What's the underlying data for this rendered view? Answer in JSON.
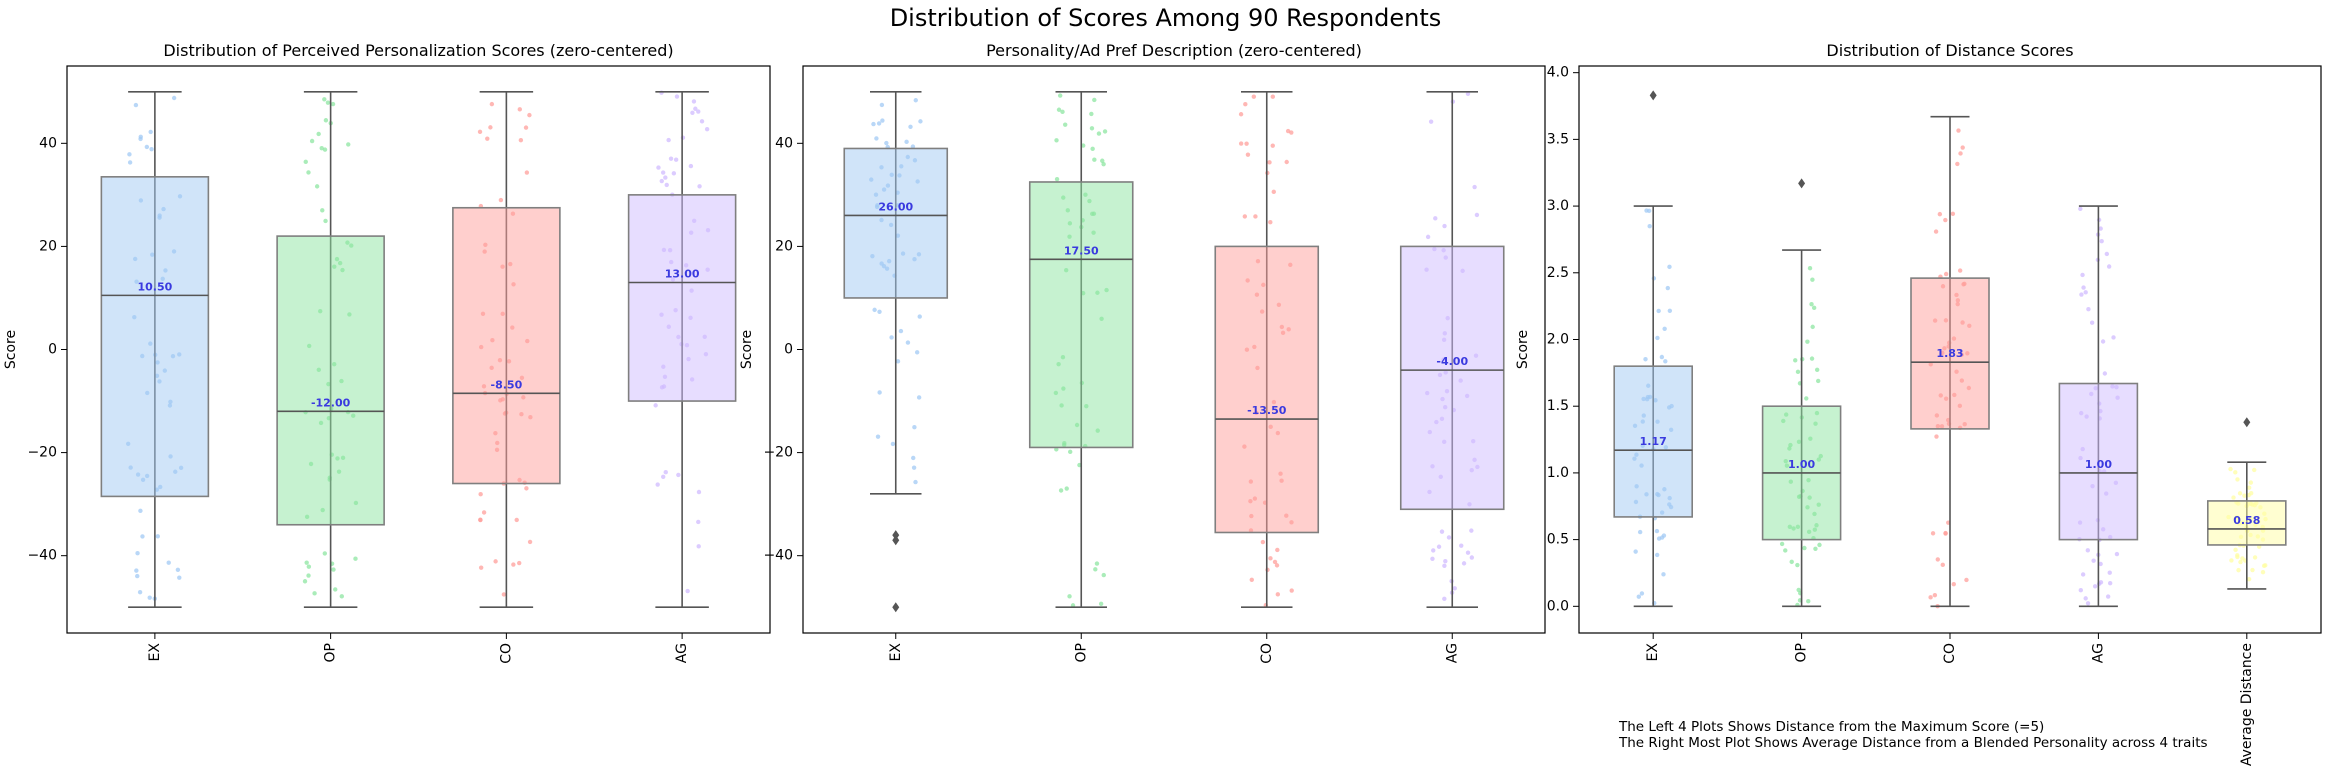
{
  "suptitle": "Distribution of Scores Among 90 Respondents",
  "footnote": {
    "line1": "The Left 4 Plots Shows Distance from the Maximum Score (=5)",
    "line2": "The Right Most Plot Shows Average Distance from a Blended Personality across 4 traits"
  },
  "colors": {
    "EX": "#a1c9f4",
    "OP": "#8de5a1",
    "CO": "#ff9f9b",
    "AG": "#d0bbff",
    "Average Distance": "#fffea3",
    "whisker": "#555555",
    "median_label": "#3a3adf"
  },
  "chart_data": [
    {
      "type": "box",
      "title": "Distribution of Perceived Personalization Scores (zero-centered)",
      "xlabel": "",
      "ylabel": "Score",
      "ylim": [
        -55,
        55
      ],
      "yticks": [
        -40,
        -20,
        0,
        20,
        40
      ],
      "ytick_labels": [
        "−40",
        "−20",
        "0",
        "20",
        "40"
      ],
      "categories": [
        "EX",
        "OP",
        "CO",
        "AG"
      ],
      "boxes": [
        {
          "category": "EX",
          "whisker_low": -50,
          "q1": -28.5,
          "median": 10.5,
          "q3": 33.5,
          "whisker_high": 50,
          "median_label": "10.50",
          "outliers": []
        },
        {
          "category": "OP",
          "whisker_low": -50,
          "q1": -34,
          "median": -12,
          "q3": 22,
          "whisker_high": 50,
          "median_label": "-12.00",
          "outliers": []
        },
        {
          "category": "CO",
          "whisker_low": -50,
          "q1": -26,
          "median": -8.5,
          "q3": 27.5,
          "whisker_high": 50,
          "median_label": "-8.50",
          "outliers": []
        },
        {
          "category": "AG",
          "whisker_low": -50,
          "q1": -10,
          "median": 13,
          "q3": 30,
          "whisker_high": 50,
          "median_label": "13.00",
          "outliers": []
        }
      ]
    },
    {
      "type": "box",
      "title": "Personality/Ad Pref Description (zero-centered)",
      "xlabel": "",
      "ylabel": "Score",
      "ylim": [
        -55,
        55
      ],
      "yticks": [
        -40,
        -20,
        0,
        20,
        40
      ],
      "ytick_labels": [
        "−40",
        "−20",
        "0",
        "20",
        "40"
      ],
      "categories": [
        "EX",
        "OP",
        "CO",
        "AG"
      ],
      "boxes": [
        {
          "category": "EX",
          "whisker_low": -28,
          "q1": 10,
          "median": 26,
          "q3": 39,
          "whisker_high": 50,
          "median_label": "26.00",
          "outliers": [
            -36,
            -37,
            -50
          ]
        },
        {
          "category": "OP",
          "whisker_low": -50,
          "q1": -19,
          "median": 17.5,
          "q3": 32.5,
          "whisker_high": 50,
          "median_label": "17.50",
          "outliers": []
        },
        {
          "category": "CO",
          "whisker_low": -50,
          "q1": -35.5,
          "median": -13.5,
          "q3": 20,
          "whisker_high": 50,
          "median_label": "-13.50",
          "outliers": []
        },
        {
          "category": "AG",
          "whisker_low": -50,
          "q1": -31,
          "median": -4,
          "q3": 20,
          "whisker_high": 50,
          "median_label": "-4.00",
          "outliers": []
        }
      ]
    },
    {
      "type": "box",
      "title": "Distribution of Distance Scores",
      "xlabel": "",
      "ylabel": "Score",
      "ylim": [
        -0.2,
        4.05
      ],
      "yticks": [
        0,
        0.5,
        1,
        1.5,
        2,
        2.5,
        3,
        3.5,
        4
      ],
      "ytick_labels": [
        "0.0",
        "0.5",
        "1.0",
        "1.5",
        "2.0",
        "2.5",
        "3.0",
        "3.5",
        "4.0"
      ],
      "categories": [
        "EX",
        "OP",
        "CO",
        "AG",
        "Average Distance"
      ],
      "boxes": [
        {
          "category": "EX",
          "whisker_low": 0,
          "q1": 0.67,
          "median": 1.17,
          "q3": 1.8,
          "whisker_high": 3.0,
          "median_label": "1.17",
          "outliers": [
            3.83
          ]
        },
        {
          "category": "OP",
          "whisker_low": 0,
          "q1": 0.5,
          "median": 1.0,
          "q3": 1.5,
          "whisker_high": 2.67,
          "median_label": "1.00",
          "outliers": [
            3.17
          ]
        },
        {
          "category": "CO",
          "whisker_low": 0,
          "q1": 1.33,
          "median": 1.83,
          "q3": 2.46,
          "whisker_high": 3.67,
          "median_label": "1.83",
          "outliers": []
        },
        {
          "category": "AG",
          "whisker_low": 0,
          "q1": 0.5,
          "median": 1.0,
          "q3": 1.67,
          "whisker_high": 3.0,
          "median_label": "1.00",
          "outliers": []
        },
        {
          "category": "Average Distance",
          "whisker_low": 0.13,
          "q1": 0.46,
          "median": 0.58,
          "q3": 0.79,
          "whisker_high": 1.08,
          "median_label": "0.58",
          "outliers": [
            1.38
          ]
        }
      ]
    }
  ]
}
